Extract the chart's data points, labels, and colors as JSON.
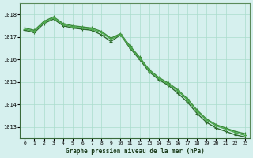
{
  "title": "Graphe pression niveau de la mer (hPa)",
  "background_color": "#d6f0ee",
  "grid_color": "#aaddcc",
  "line_color_main": "#2d6a2d",
  "line_color_fill": "#3a8a3a",
  "x_labels": [
    "0",
    "1",
    "2",
    "3",
    "4",
    "5",
    "6",
    "7",
    "8",
    "9",
    "10",
    "11",
    "12",
    "13",
    "14",
    "15",
    "16",
    "17",
    "18",
    "19",
    "20",
    "21",
    "22",
    "23"
  ],
  "ylim": [
    1012.5,
    1018.5
  ],
  "yticks": [
    1013,
    1014,
    1015,
    1016,
    1017,
    1018
  ],
  "series": [
    [
      1017.3,
      1017.2,
      1017.6,
      1017.8,
      1017.5,
      1017.4,
      1017.35,
      1017.3,
      1017.1,
      1016.8,
      1017.1,
      1016.5,
      1016.0,
      1015.45,
      1015.1,
      1014.85,
      1014.5,
      1014.1,
      1013.6,
      1013.2,
      1012.95,
      1012.8,
      1012.65,
      1012.55
    ],
    [
      1017.4,
      1017.3,
      1017.7,
      1017.9,
      1017.6,
      1017.5,
      1017.45,
      1017.4,
      1017.25,
      1016.95,
      1017.15,
      1016.6,
      1016.1,
      1015.55,
      1015.2,
      1014.95,
      1014.65,
      1014.25,
      1013.75,
      1013.35,
      1013.1,
      1012.95,
      1012.8,
      1012.7
    ],
    [
      1017.35,
      1017.25,
      1017.65,
      1017.85,
      1017.55,
      1017.45,
      1017.4,
      1017.35,
      1017.2,
      1016.9,
      1017.1,
      1016.55,
      1016.05,
      1015.5,
      1015.15,
      1014.9,
      1014.6,
      1014.2,
      1013.7,
      1013.3,
      1013.05,
      1012.9,
      1012.75,
      1012.62
    ]
  ]
}
